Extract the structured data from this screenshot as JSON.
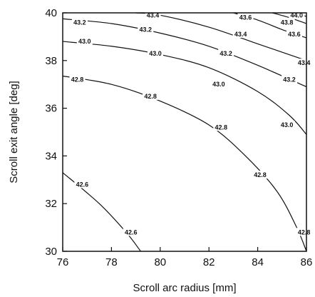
{
  "chart_data": {
    "type": "contour",
    "xlabel": "Scroll arc radius [mm]",
    "ylabel": "Scroll exit angle [deg]",
    "xlim": [
      76,
      86
    ],
    "ylim": [
      30,
      40
    ],
    "x_ticks": [
      "76",
      "78",
      "80",
      "82",
      "84",
      "86"
    ],
    "y_ticks": [
      "30",
      "32",
      "34",
      "36",
      "38",
      "40"
    ],
    "grid": false,
    "contours": [
      {
        "level": "42.6",
        "points": [
          [
            76,
            33.3
          ],
          [
            77.5,
            32.0
          ],
          [
            78.6,
            30.8
          ],
          [
            79.2,
            30.0
          ]
        ],
        "labels": [
          [
            76.8,
            32.8
          ],
          [
            78.8,
            30.8
          ]
        ]
      },
      {
        "level": "42.8",
        "points": [
          [
            76,
            37.35
          ],
          [
            78,
            37.0
          ],
          [
            80,
            36.3
          ],
          [
            82,
            35.3
          ],
          [
            83.5,
            34.0
          ],
          [
            84.8,
            32.5
          ],
          [
            85.6,
            31.0
          ],
          [
            86,
            30.0
          ]
        ],
        "labels": [
          [
            76.6,
            37.2
          ],
          [
            79.6,
            36.5
          ],
          [
            82.5,
            35.2
          ],
          [
            84.1,
            33.2
          ],
          [
            85.9,
            30.8
          ]
        ]
      },
      {
        "level": "43.0",
        "points": [
          [
            76,
            38.8
          ],
          [
            78,
            38.6
          ],
          [
            80,
            38.25
          ],
          [
            82,
            37.7
          ],
          [
            84,
            36.7
          ],
          [
            85.3,
            35.7
          ],
          [
            86,
            34.9
          ]
        ],
        "labels": [
          [
            76.9,
            38.8
          ],
          [
            79.8,
            38.3
          ],
          [
            82.4,
            37.0
          ],
          [
            85.2,
            35.3
          ]
        ]
      },
      {
        "level": "43.2",
        "points": [
          [
            76,
            39.75
          ],
          [
            78,
            39.55
          ],
          [
            80,
            39.15
          ],
          [
            82,
            38.6
          ],
          [
            84,
            37.8
          ],
          [
            86,
            36.9
          ]
        ],
        "labels": [
          [
            76.7,
            39.6
          ],
          [
            79.4,
            39.3
          ],
          [
            82.7,
            38.3
          ],
          [
            85.3,
            37.2
          ]
        ]
      },
      {
        "level": "43.4",
        "points": [
          [
            79.0,
            40.0
          ],
          [
            80,
            39.9
          ],
          [
            82,
            39.4
          ],
          [
            84,
            38.7
          ],
          [
            86,
            38.0
          ]
        ],
        "labels": [
          [
            79.7,
            39.9
          ],
          [
            83.3,
            39.1
          ],
          [
            85.9,
            37.9
          ]
        ]
      },
      {
        "level": "43.6",
        "points": [
          [
            83.0,
            40.0
          ],
          [
            84,
            39.7
          ],
          [
            85,
            39.3
          ],
          [
            86,
            38.95
          ]
        ],
        "labels": [
          [
            83.5,
            39.8
          ],
          [
            85.5,
            39.1
          ]
        ]
      },
      {
        "level": "43.8",
        "points": [
          [
            84.6,
            40.0
          ],
          [
            85.3,
            39.8
          ],
          [
            86,
            39.55
          ]
        ],
        "labels": [
          [
            85.2,
            39.6
          ]
        ]
      },
      {
        "level": "44.0",
        "points": [
          [
            85.5,
            40.0
          ],
          [
            86,
            39.85
          ]
        ],
        "labels": [
          [
            85.6,
            39.9
          ]
        ]
      }
    ]
  }
}
